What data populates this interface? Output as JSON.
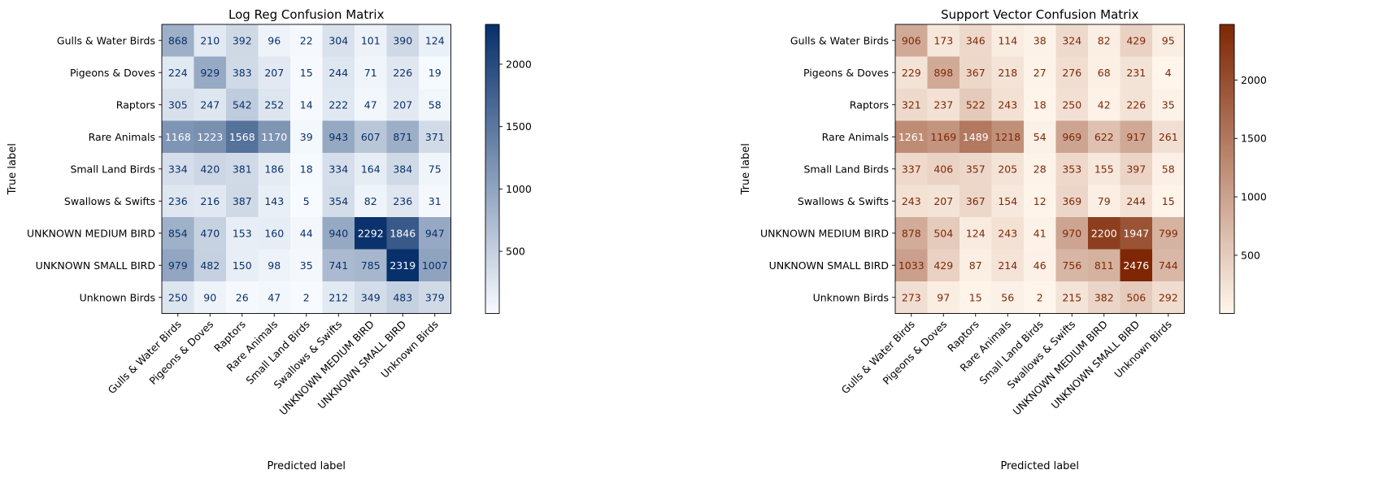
{
  "chart_data": [
    {
      "type": "heatmap",
      "title": "Log Reg Confusion Matrix",
      "xlabel": "Predicted label",
      "ylabel": "True label",
      "colormap": "Blues",
      "colors": {
        "low": "#f7fbff",
        "high": "#08306b",
        "text_dark": "#08306b",
        "text_light": "#ffffff"
      },
      "categories": [
        "Gulls & Water Birds",
        "Pigeons & Doves",
        "Raptors",
        "Rare Animals",
        "Small Land Birds",
        "Swallows & Swifts",
        "UNKNOWN MEDIUM BIRD",
        "UNKNOWN SMALL BIRD",
        "Unknown Birds"
      ],
      "matrix": [
        [
          868,
          210,
          392,
          96,
          22,
          304,
          101,
          390,
          124
        ],
        [
          224,
          929,
          383,
          207,
          15,
          244,
          71,
          226,
          19
        ],
        [
          305,
          247,
          542,
          252,
          14,
          222,
          47,
          207,
          58
        ],
        [
          1168,
          1223,
          1568,
          1170,
          39,
          943,
          607,
          871,
          371
        ],
        [
          334,
          420,
          381,
          186,
          18,
          334,
          164,
          384,
          75
        ],
        [
          236,
          216,
          387,
          143,
          5,
          354,
          82,
          236,
          31
        ],
        [
          854,
          470,
          153,
          160,
          44,
          940,
          2292,
          1846,
          947
        ],
        [
          979,
          482,
          150,
          98,
          35,
          741,
          785,
          2319,
          1007
        ],
        [
          250,
          90,
          26,
          47,
          2,
          212,
          349,
          483,
          379
        ]
      ],
      "colorbar": {
        "range": [
          2,
          2319
        ],
        "ticks": [
          "500",
          "1000",
          "1500",
          "2000"
        ]
      }
    },
    {
      "type": "heatmap",
      "title": "Support Vector Confusion Matrix",
      "xlabel": "Predicted label",
      "ylabel": "True label",
      "colormap": "Oranges",
      "colors": {
        "low": "#fff5eb",
        "high": "#7f2704",
        "text_dark": "#7f2704",
        "text_light": "#ffffff"
      },
      "categories": [
        "Gulls & Water Birds",
        "Pigeons & Doves",
        "Raptors",
        "Rare Animals",
        "Small Land Birds",
        "Swallows & Swifts",
        "UNKNOWN MEDIUM BIRD",
        "UNKNOWN SMALL BIRD",
        "Unknown Birds"
      ],
      "matrix": [
        [
          906,
          173,
          346,
          114,
          38,
          324,
          82,
          429,
          95
        ],
        [
          229,
          898,
          367,
          218,
          27,
          276,
          68,
          231,
          4
        ],
        [
          321,
          237,
          522,
          243,
          18,
          250,
          42,
          226,
          35
        ],
        [
          1261,
          1169,
          1489,
          1218,
          54,
          969,
          622,
          917,
          261
        ],
        [
          337,
          406,
          357,
          205,
          28,
          353,
          155,
          397,
          58
        ],
        [
          243,
          207,
          367,
          154,
          12,
          369,
          79,
          244,
          15
        ],
        [
          878,
          504,
          124,
          243,
          41,
          970,
          2200,
          1947,
          799
        ],
        [
          1033,
          429,
          87,
          214,
          46,
          756,
          811,
          2476,
          744
        ],
        [
          273,
          97,
          15,
          56,
          2,
          215,
          382,
          506,
          292
        ]
      ],
      "colorbar": {
        "range": [
          2,
          2476
        ],
        "ticks": [
          "500",
          "1000",
          "1500",
          "2000"
        ]
      }
    }
  ]
}
